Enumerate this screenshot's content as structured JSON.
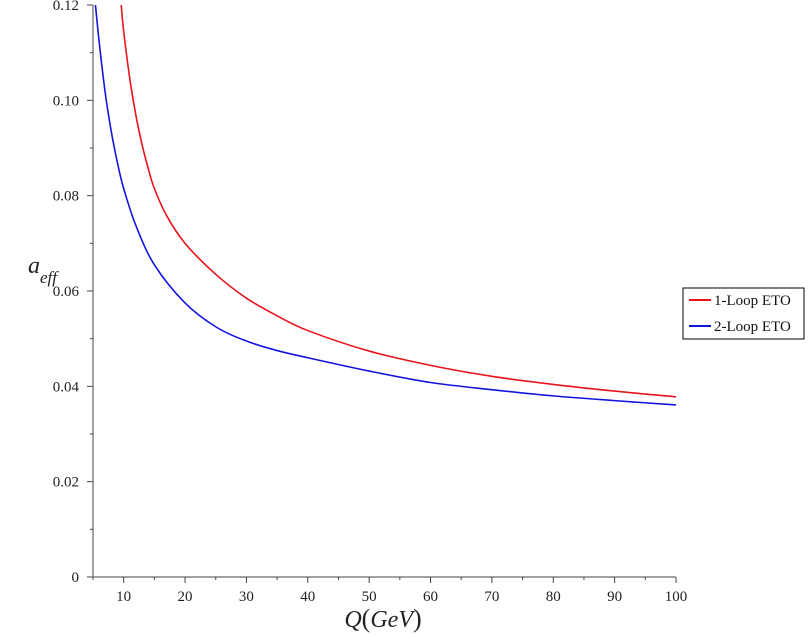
{
  "chart_data": {
    "type": "line",
    "xlabel_main": "Q",
    "xlabel_unit": "GeV",
    "ylabel_main": "a",
    "ylabel_sub": "eff",
    "xlim": [
      5,
      100
    ],
    "ylim": [
      0,
      0.12
    ],
    "x_ticks": [
      10,
      20,
      30,
      40,
      50,
      60,
      70,
      80,
      90,
      100
    ],
    "x_tick_labels": [
      "10",
      "20",
      "30",
      "40",
      "50",
      "60",
      "70",
      "80",
      "90",
      "100"
    ],
    "y_ticks": [
      0,
      0.02,
      0.04,
      0.06,
      0.08,
      0.1,
      0.12
    ],
    "y_tick_labels": [
      "0",
      "0.02",
      "0.04",
      "0.06",
      "0.08",
      "0.10",
      "0.12"
    ],
    "grid": false,
    "legend_position": "right",
    "series": [
      {
        "name": "1-Loop ETO",
        "color": "#e8141b",
        "x": [
          9.6,
          10,
          11,
          12,
          13,
          14,
          15,
          17,
          20,
          25,
          30,
          35,
          40,
          50,
          60,
          70,
          80,
          90,
          100
        ],
        "y": [
          0.12,
          0.1145,
          0.1045,
          0.0968,
          0.0907,
          0.0857,
          0.0815,
          0.0758,
          0.07,
          0.0635,
          0.0585,
          0.0548,
          0.0517,
          0.0474,
          0.0444,
          0.0421,
          0.0404,
          0.039,
          0.0378
        ]
      },
      {
        "name": "2-Loop ETO",
        "color": "#1414e0",
        "x": [
          5.4,
          6,
          7,
          8,
          9,
          10,
          12,
          15,
          20,
          25,
          30,
          35,
          40,
          50,
          60,
          70,
          80,
          90,
          100
        ],
        "y": [
          0.12,
          0.1123,
          0.1015,
          0.0933,
          0.0868,
          0.0815,
          0.0737,
          0.0655,
          0.0575,
          0.0525,
          0.0495,
          0.0475,
          0.046,
          0.0432,
          0.0408,
          0.0393,
          0.038,
          0.037,
          0.0361
        ]
      }
    ]
  }
}
